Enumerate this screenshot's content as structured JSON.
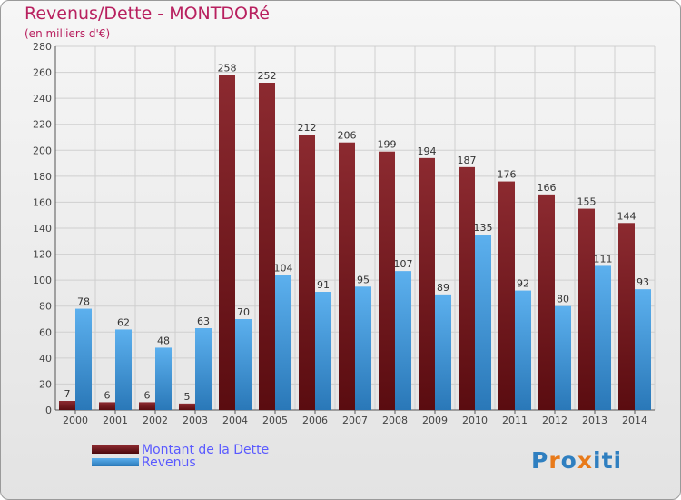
{
  "header": {
    "title": "Revenus/Dette - MONTDORé",
    "subtitle": "(en milliers d'€)"
  },
  "legend": {
    "items": [
      {
        "label": "Montant de la Dette",
        "color": "#7a1a1f"
      },
      {
        "label": "Revenus",
        "color": "#3f9de0"
      }
    ]
  },
  "logo": {
    "letters": [
      "P",
      "r",
      "o",
      "x",
      "i",
      "t",
      "i"
    ],
    "colors": [
      "#2f7fc0",
      "#e87a1a",
      "#2f7fc0",
      "#e87a1a",
      "#2f7fc0",
      "#2f7fc0",
      "#2f7fc0"
    ]
  },
  "chart_data": {
    "type": "bar",
    "title": "Revenus/Dette - MONTDORé",
    "subtitle": "(en milliers d'€)",
    "xlabel": "",
    "ylabel": "",
    "ylim": [
      0,
      280
    ],
    "yticks": [
      0,
      20,
      40,
      60,
      80,
      100,
      120,
      140,
      160,
      180,
      200,
      220,
      240,
      260,
      280
    ],
    "grid": true,
    "legend_position": "bottom-left",
    "categories": [
      "2000",
      "2001",
      "2002",
      "2003",
      "2004",
      "2005",
      "2006",
      "2007",
      "2008",
      "2009",
      "2010",
      "2011",
      "2012",
      "2013",
      "2014"
    ],
    "series": [
      {
        "name": "Montant de la Dette",
        "color": "#7a1a1f",
        "values": [
          7,
          6,
          6,
          5,
          258,
          252,
          212,
          206,
          199,
          194,
          187,
          176,
          166,
          155,
          144
        ]
      },
      {
        "name": "Revenus",
        "color": "#3f9de0",
        "values": [
          78,
          62,
          48,
          63,
          70,
          104,
          91,
          95,
          107,
          89,
          135,
          92,
          80,
          111,
          93
        ]
      }
    ]
  }
}
